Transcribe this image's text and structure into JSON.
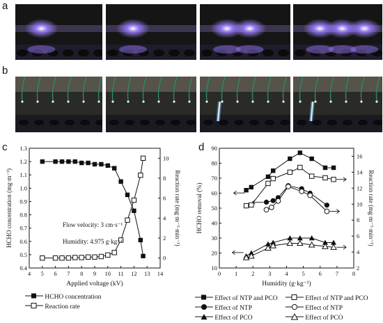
{
  "panel_labels": {
    "a": "a",
    "b": "b",
    "c": "c",
    "d": "d"
  },
  "photos_a": [
    {
      "name": "discharge-photo-1",
      "glow": [
        1,
        0,
        0
      ]
    },
    {
      "name": "discharge-photo-2",
      "glow": [
        1,
        0,
        0
      ]
    },
    {
      "name": "discharge-photo-3",
      "glow": [
        1,
        1,
        0
      ]
    },
    {
      "name": "discharge-photo-4",
      "glow": [
        1,
        1,
        1
      ]
    }
  ],
  "photos_b": [
    {
      "name": "needle-photo-1",
      "spark": false
    },
    {
      "name": "needle-photo-2",
      "spark": false
    },
    {
      "name": "needle-photo-3",
      "spark": true
    },
    {
      "name": "needle-photo-4",
      "spark": true
    }
  ],
  "colors": {
    "glow": "#9b7dff",
    "photo_bg": "#151515",
    "electrode": "#2a8a6a"
  },
  "chart_data": [
    {
      "type": "line",
      "xlabel": "Applied voltage (kV)",
      "ylabel_left": "HCHO concentration (mg·m⁻³)",
      "ylabel_right": "Reaction rate (mg·m⁻³·min⁻¹)",
      "xlim": [
        4,
        14
      ],
      "ylim_left": [
        0.4,
        1.3
      ],
      "ylim_right": [
        -1,
        11
      ],
      "xticks": [
        "4",
        "5",
        "6",
        "7",
        "8",
        "9",
        "10",
        "11",
        "12",
        "13",
        "14"
      ],
      "yticks_left": [
        "0.4",
        "0.5",
        "0.6",
        "0.7",
        "0.8",
        "0.9",
        "1.0",
        "1.1",
        "1.2",
        "1.3"
      ],
      "yticks_right": [
        "0",
        "2",
        "4",
        "6",
        "8",
        "10"
      ],
      "annotations": [
        "Flow velocity: 3 cm·s⁻¹",
        "Humidity: 4.975 g·kg⁻¹"
      ],
      "series": [
        {
          "name": "HCHO concentration",
          "axis": "left",
          "marker": "square-filled",
          "x": [
            5,
            6,
            6.5,
            7,
            7.5,
            8,
            8.5,
            9,
            9.5,
            10,
            10.5,
            11,
            11.5,
            12,
            12.5,
            12.7
          ],
          "y": [
            1.2,
            1.2,
            1.2,
            1.2,
            1.2,
            1.19,
            1.19,
            1.18,
            1.18,
            1.17,
            1.15,
            1.05,
            0.95,
            0.83,
            0.61,
            0.49
          ]
        },
        {
          "name": "Reaction rate",
          "axis": "right",
          "marker": "square-open",
          "x": [
            5,
            6,
            6.5,
            7,
            7.5,
            8,
            8.5,
            9,
            9.5,
            10,
            10.5,
            11,
            11.5,
            12,
            12.5,
            12.7
          ],
          "y": [
            0,
            0,
            0,
            0,
            0.05,
            0.05,
            0.1,
            0.1,
            0.15,
            0.3,
            0.55,
            1.8,
            3.8,
            5.8,
            8.3,
            10
          ]
        }
      ],
      "legend": {
        "position": "below",
        "entries": [
          "HCHO concentration",
          "Reaction rate"
        ]
      }
    },
    {
      "type": "line",
      "xlabel": "Humidity (g·kg⁻¹)",
      "ylabel_left": "HCHO removal (%)",
      "ylabel_right": "Reaction rate (mg·m⁻³·min⁻¹)",
      "xlim": [
        0,
        8
      ],
      "ylim_left": [
        10,
        90
      ],
      "ylim_right": [
        2,
        17
      ],
      "xticks": [
        "0",
        "1",
        "2",
        "3",
        "4",
        "5",
        "6",
        "7",
        "8"
      ],
      "yticks_left": [
        "10",
        "20",
        "30",
        "40",
        "50",
        "60",
        "70",
        "80",
        "90"
      ],
      "yticks_right": [
        "2",
        "4",
        "6",
        "8",
        "10",
        "12",
        "14",
        "16"
      ],
      "series": [
        {
          "name": "Effect of NTP and PCO",
          "axis": "left",
          "marker": "square-filled",
          "x": [
            1.6,
            1.9,
            2.9,
            3.2,
            4.2,
            4.8,
            5.5,
            6.3,
            6.8
          ],
          "y": [
            62,
            64,
            71,
            75,
            83,
            87,
            83,
            77,
            77
          ]
        },
        {
          "name": "Effect of NTP",
          "axis": "left",
          "marker": "circle-filled",
          "x": [
            2.8,
            3.2,
            3.5,
            4.1,
            4.9,
            5.4,
            6.4
          ],
          "y": [
            54,
            55,
            57,
            65,
            63,
            60,
            52
          ]
        },
        {
          "name": "Effect of PCO",
          "axis": "left",
          "marker": "triangle-filled",
          "x": [
            1.6,
            1.9,
            2.9,
            3.2,
            4.2,
            4.8,
            5.5,
            6.3,
            6.8
          ],
          "y": [
            18,
            20,
            26,
            27,
            30,
            30,
            30,
            27,
            27
          ]
        },
        {
          "name": "Effect of NTP and PCO",
          "axis": "right",
          "marker": "square-open",
          "x": [
            1.6,
            1.9,
            2.9,
            3.2,
            4.2,
            4.8,
            5.5,
            6.3,
            6.8
          ],
          "y": [
            9.8,
            9.9,
            12.6,
            13.2,
            14.0,
            14.6,
            13.5,
            13.3,
            13.1
          ]
        },
        {
          "name": "Effect of NTP",
          "axis": "right",
          "marker": "circle-open",
          "x": [
            2.8,
            3.1,
            3.5,
            4.1,
            4.9,
            5.4,
            6.4
          ],
          "y": [
            9.3,
            9.6,
            10.4,
            12.2,
            11.6,
            11.1,
            9.1
          ]
        },
        {
          "name": "Effect of PCO",
          "axis": "right",
          "marker": "triangle-open",
          "x": [
            1.6,
            1.9,
            2.9,
            3.2,
            4.2,
            4.8,
            5.5,
            6.3,
            6.8
          ],
          "y": [
            3.3,
            3.5,
            4.5,
            4.8,
            5.1,
            5.1,
            4.9,
            4.7,
            4.6
          ]
        }
      ],
      "legend": {
        "position": "below",
        "columns": 2,
        "entries": [
          "Effect of NTP and PCO",
          "Effect of NTP",
          "Effect of PCO",
          "Effect of NTP and PCO",
          "Effect of NTP",
          "Effect of PCO"
        ]
      }
    }
  ]
}
